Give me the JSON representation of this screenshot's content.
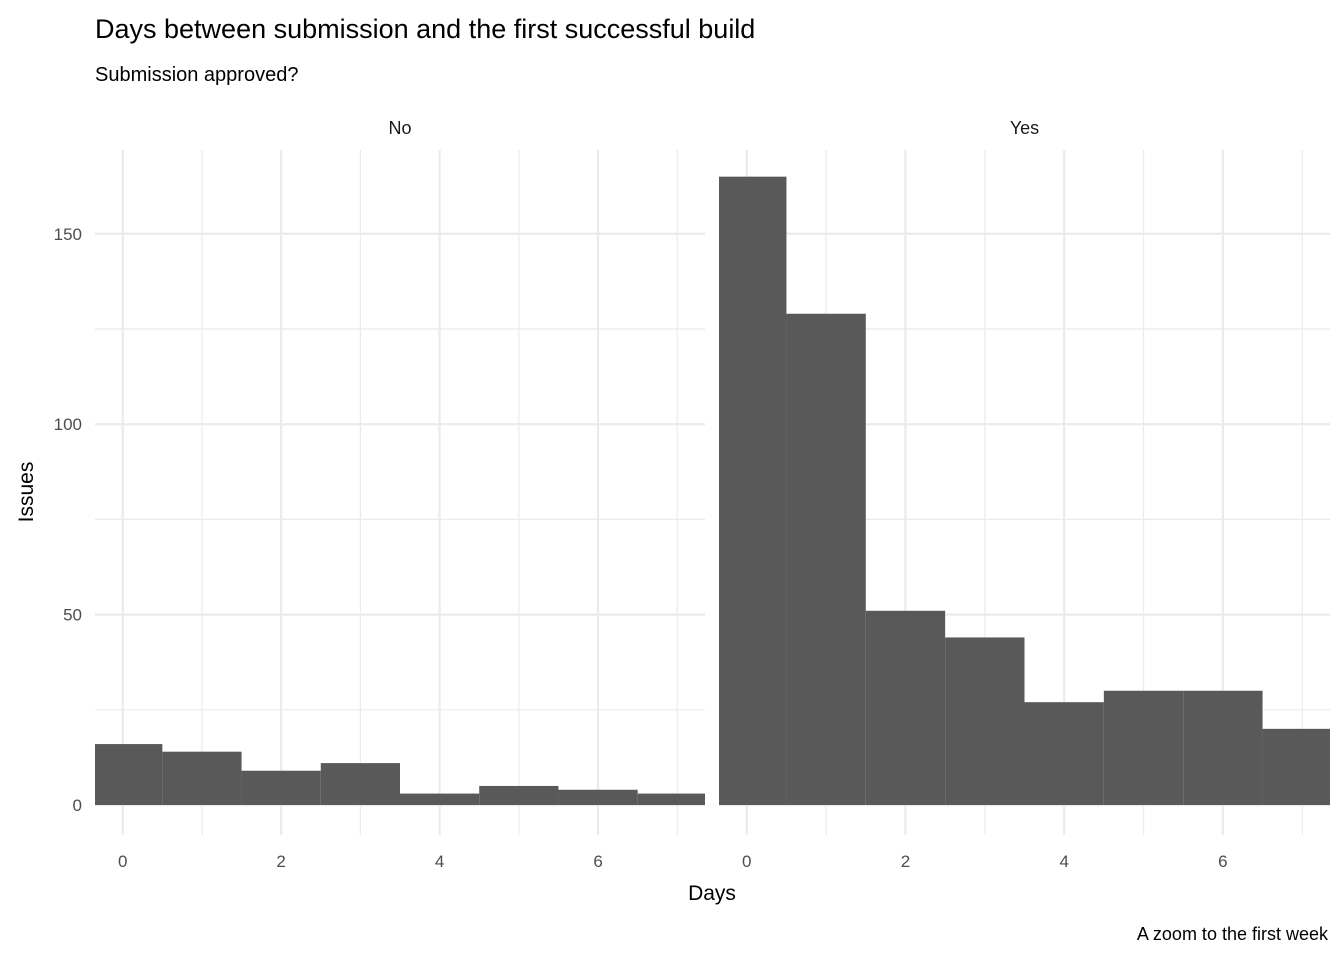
{
  "chart_data": {
    "type": "bar",
    "title": "Days between submission and the first successful build",
    "subtitle": "Submission approved?",
    "xlabel": "Days",
    "ylabel": "Issues",
    "caption": "A zoom to the first week",
    "xlim": [
      -0.35,
      7.35
    ],
    "ylim": [
      0,
      172
    ],
    "x_ticks": [
      0,
      2,
      4,
      6
    ],
    "x_ticks_minor": [
      1,
      3,
      5,
      7
    ],
    "y_ticks": [
      0,
      50,
      100,
      150
    ],
    "y_ticks_minor": [
      25,
      75,
      125
    ],
    "grid": true,
    "legend": "none",
    "bar_color": "#595959",
    "bin_width": 1,
    "x": [
      0,
      1,
      2,
      3,
      4,
      5,
      6,
      7
    ],
    "facets": [
      {
        "label": "No",
        "values": [
          16,
          14,
          9,
          11,
          3,
          5,
          4,
          3
        ]
      },
      {
        "label": "Yes",
        "values": [
          165,
          129,
          51,
          44,
          27,
          30,
          30,
          20
        ]
      }
    ]
  }
}
